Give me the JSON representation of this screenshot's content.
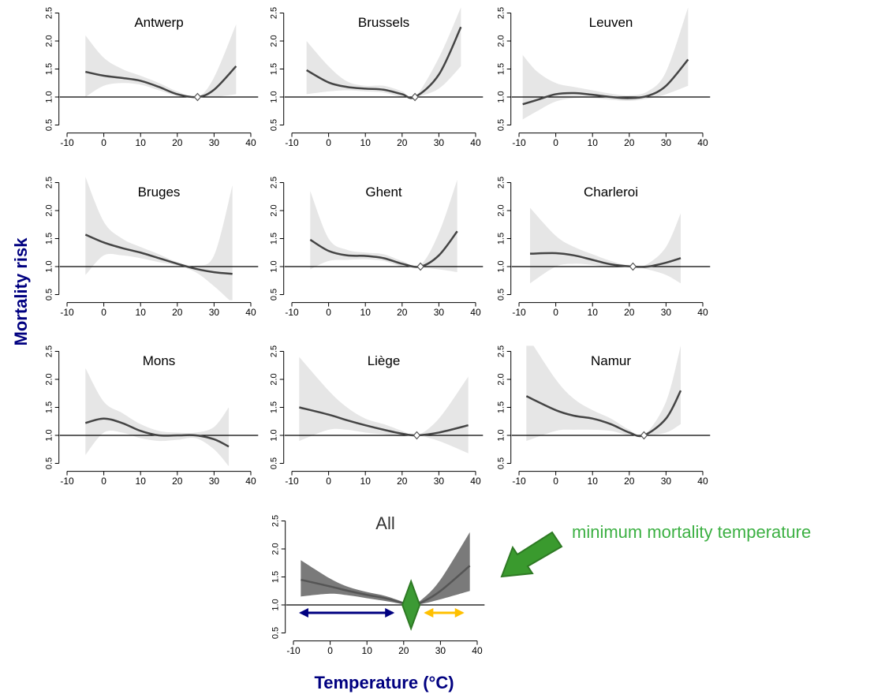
{
  "ylabel": "Mortality risk",
  "xlabel": "Temperature (°C)",
  "annotation": "minimum mortality temperature",
  "chart_data": [
    {
      "type": "line",
      "title": "Antwerp",
      "x": [
        -5,
        0,
        5,
        10,
        15,
        20,
        25.5,
        30,
        36
      ],
      "values": [
        1.45,
        1.38,
        1.34,
        1.29,
        1.18,
        1.05,
        1.0,
        1.13,
        1.55
      ],
      "lower": [
        1.0,
        1.2,
        1.25,
        1.22,
        1.12,
        1.02,
        1.0,
        1.0,
        1.05
      ],
      "upper": [
        2.1,
        1.7,
        1.5,
        1.38,
        1.25,
        1.1,
        1.0,
        1.35,
        2.3
      ],
      "mmt": 25.5,
      "hline": 1,
      "color": "#444444",
      "band_color": "#e6e6e6",
      "xlim": [
        -12,
        42
      ],
      "ylim": [
        0.4,
        2.6
      ],
      "xticks": [
        -10,
        0,
        10,
        20,
        30,
        40
      ],
      "yticks": [
        0.5,
        {
          "value": 1,
          "label": "1.0"
        },
        1.5,
        {
          "value": 2,
          "label": "2.0"
        },
        2.5
      ]
    },
    {
      "type": "line",
      "title": "Brussels",
      "x": [
        -6,
        0,
        5,
        10,
        15,
        20,
        23.5,
        30,
        36
      ],
      "values": [
        1.48,
        1.26,
        1.18,
        1.15,
        1.13,
        1.05,
        1.0,
        1.4,
        2.25
      ],
      "lower": [
        1.05,
        1.1,
        1.12,
        1.1,
        1.08,
        1.0,
        1.0,
        1.15,
        1.55
      ],
      "upper": [
        2.0,
        1.55,
        1.28,
        1.2,
        1.2,
        1.1,
        1.0,
        1.7,
        2.6
      ],
      "mmt": 23.5,
      "hline": 1,
      "color": "#444444",
      "band_color": "#e6e6e6",
      "xlim": [
        -12,
        42
      ],
      "ylim": [
        0.4,
        2.6
      ],
      "xticks": [
        -10,
        0,
        10,
        20,
        30,
        40
      ],
      "yticks": [
        0.5,
        {
          "value": 1,
          "label": "1.0"
        },
        1.5,
        {
          "value": 2,
          "label": "2.0"
        },
        2.5
      ]
    },
    {
      "type": "line",
      "title": "Leuven",
      "x": [
        -9,
        -5,
        0,
        5,
        10,
        15,
        20,
        25,
        30,
        36
      ],
      "values": [
        0.87,
        0.95,
        1.05,
        1.07,
        1.04,
        1.0,
        0.98,
        1.02,
        1.2,
        1.67
      ],
      "lower": [
        0.6,
        0.75,
        0.92,
        0.98,
        0.98,
        0.95,
        0.93,
        0.97,
        1.05,
        1.2
      ],
      "upper": [
        1.75,
        1.45,
        1.25,
        1.18,
        1.12,
        1.06,
        1.03,
        1.1,
        1.45,
        2.6
      ],
      "hline": 1,
      "color": "#444444",
      "band_color": "#e6e6e6",
      "xlim": [
        -12,
        42
      ],
      "ylim": [
        0.4,
        2.6
      ],
      "xticks": [
        -10,
        0,
        10,
        20,
        30,
        40
      ],
      "yticks": [
        0.5,
        {
          "value": 1,
          "label": "1.0"
        },
        1.5,
        {
          "value": 2,
          "label": "2.0"
        },
        2.5
      ]
    },
    {
      "type": "line",
      "title": "Bruges",
      "x": [
        -5,
        0,
        5,
        10,
        15,
        20,
        25,
        30,
        35
      ],
      "values": [
        1.57,
        1.43,
        1.33,
        1.25,
        1.15,
        1.05,
        0.96,
        0.9,
        0.87
      ],
      "lower": [
        0.85,
        1.2,
        1.2,
        1.15,
        1.08,
        1.02,
        0.9,
        0.65,
        0.35
      ],
      "upper": [
        2.6,
        1.8,
        1.5,
        1.35,
        1.22,
        1.08,
        1.02,
        1.2,
        2.45
      ],
      "hline": 1,
      "color": "#444444",
      "band_color": "#e6e6e6",
      "xlim": [
        -12,
        42
      ],
      "ylim": [
        0.4,
        2.6
      ],
      "xticks": [
        -10,
        0,
        10,
        20,
        30,
        40
      ],
      "yticks": [
        0.5,
        {
          "value": 1,
          "label": "1.0"
        },
        1.5,
        {
          "value": 2,
          "label": "2.0"
        },
        2.5
      ]
    },
    {
      "type": "line",
      "title": "Ghent",
      "x": [
        -5,
        0,
        5,
        10,
        15,
        20,
        25,
        30,
        35
      ],
      "values": [
        1.48,
        1.28,
        1.2,
        1.19,
        1.15,
        1.05,
        1.0,
        1.2,
        1.63
      ],
      "lower": [
        0.95,
        1.1,
        1.12,
        1.13,
        1.1,
        1.0,
        0.98,
        0.95,
        0.9
      ],
      "upper": [
        2.35,
        1.5,
        1.3,
        1.25,
        1.22,
        1.1,
        1.03,
        1.6,
        2.55
      ],
      "mmt": 25,
      "hline": 1,
      "color": "#444444",
      "band_color": "#e6e6e6",
      "xlim": [
        -12,
        42
      ],
      "ylim": [
        0.4,
        2.6
      ],
      "xticks": [
        -10,
        0,
        10,
        20,
        30,
        40
      ],
      "yticks": [
        0.5,
        {
          "value": 1,
          "label": "1.0"
        },
        1.5,
        {
          "value": 2,
          "label": "2.0"
        },
        2.5
      ]
    },
    {
      "type": "line",
      "title": "Charleroi",
      "x": [
        -7,
        0,
        5,
        10,
        15,
        21,
        25,
        30,
        34
      ],
      "values": [
        1.23,
        1.24,
        1.2,
        1.12,
        1.04,
        1.0,
        1.0,
        1.07,
        1.15
      ],
      "lower": [
        0.7,
        1.0,
        1.05,
        1.03,
        0.98,
        1.0,
        0.95,
        0.85,
        0.7
      ],
      "upper": [
        2.05,
        1.55,
        1.35,
        1.22,
        1.1,
        1.0,
        1.05,
        1.35,
        1.95
      ],
      "mmt": 21,
      "hline": 1,
      "color": "#444444",
      "band_color": "#e6e6e6",
      "xlim": [
        -12,
        42
      ],
      "ylim": [
        0.4,
        2.6
      ],
      "xticks": [
        -10,
        0,
        10,
        20,
        30,
        40
      ],
      "yticks": [
        0.5,
        {
          "value": 1,
          "label": "1.0"
        },
        1.5,
        {
          "value": 2,
          "label": "2.0"
        },
        2.5
      ]
    },
    {
      "type": "line",
      "title": "Mons",
      "x": [
        -5,
        0,
        5,
        10,
        15,
        20,
        25,
        30,
        34
      ],
      "values": [
        1.22,
        1.3,
        1.22,
        1.08,
        1.0,
        1.0,
        1.0,
        0.93,
        0.8
      ],
      "lower": [
        0.65,
        1.05,
        1.05,
        0.95,
        0.9,
        0.92,
        0.95,
        0.75,
        0.45
      ],
      "upper": [
        2.2,
        1.6,
        1.4,
        1.2,
        1.08,
        1.05,
        1.05,
        1.15,
        1.5
      ],
      "hline": 1,
      "color": "#444444",
      "band_color": "#e6e6e6",
      "xlim": [
        -12,
        42
      ],
      "ylim": [
        0.4,
        2.6
      ],
      "xticks": [
        -10,
        0,
        10,
        20,
        30,
        40
      ],
      "yticks": [
        0.5,
        {
          "value": 1,
          "label": "1.0"
        },
        1.5,
        {
          "value": 2,
          "label": "2.0"
        },
        2.5
      ]
    },
    {
      "type": "line",
      "title": "Liège",
      "x": [
        -8,
        0,
        5,
        10,
        15,
        20,
        24,
        30,
        38
      ],
      "values": [
        1.5,
        1.37,
        1.27,
        1.18,
        1.1,
        1.03,
        1.0,
        1.05,
        1.18
      ],
      "lower": [
        0.9,
        1.1,
        1.1,
        1.05,
        1.02,
        0.98,
        1.0,
        0.9,
        0.68
      ],
      "upper": [
        2.4,
        1.8,
        1.5,
        1.3,
        1.2,
        1.08,
        1.0,
        1.3,
        2.05
      ],
      "mmt": 24,
      "hline": 1,
      "color": "#444444",
      "band_color": "#e6e6e6",
      "xlim": [
        -12,
        42
      ],
      "ylim": [
        0.4,
        2.6
      ],
      "xticks": [
        -10,
        0,
        10,
        20,
        30,
        40
      ],
      "yticks": [
        0.5,
        {
          "value": 1,
          "label": "1.0"
        },
        1.5,
        {
          "value": 2,
          "label": "2.0"
        },
        2.5
      ]
    },
    {
      "type": "line",
      "title": "Namur",
      "x": [
        -8,
        0,
        5,
        10,
        15,
        20,
        24,
        30,
        34
      ],
      "values": [
        1.7,
        1.45,
        1.35,
        1.3,
        1.2,
        1.05,
        1.0,
        1.3,
        1.8
      ],
      "lower": [
        0.9,
        1.08,
        1.1,
        1.1,
        1.08,
        1.0,
        1.0,
        1.05,
        1.2
      ],
      "upper": [
        2.8,
        2.0,
        1.65,
        1.45,
        1.3,
        1.1,
        1.0,
        1.6,
        2.6
      ],
      "mmt": 24,
      "hline": 1,
      "color": "#444444",
      "band_color": "#e6e6e6",
      "xlim": [
        -12,
        42
      ],
      "ylim": [
        0.4,
        2.6
      ],
      "xticks": [
        -10,
        0,
        10,
        20,
        30,
        40
      ],
      "yticks": [
        0.5,
        {
          "value": 1,
          "label": "1.0"
        },
        1.5,
        {
          "value": 2,
          "label": "2.0"
        },
        2.5
      ]
    },
    {
      "type": "line",
      "title": "All",
      "x": [
        -8,
        0,
        5,
        10,
        15,
        20,
        22,
        25,
        30,
        38
      ],
      "values": [
        1.45,
        1.33,
        1.25,
        1.18,
        1.12,
        1.03,
        1.0,
        1.05,
        1.25,
        1.7
      ],
      "lower": [
        1.15,
        1.2,
        1.17,
        1.12,
        1.07,
        1.01,
        1.0,
        1.02,
        1.1,
        1.25
      ],
      "upper": [
        1.8,
        1.47,
        1.32,
        1.23,
        1.16,
        1.05,
        1.0,
        1.1,
        1.45,
        2.3
      ],
      "mmt": 22,
      "mmt_color": "#3c9a34",
      "hline": 1,
      "color": "#555555",
      "band_color": "#7a7a7a",
      "xlim": [
        -12,
        42
      ],
      "ylim": [
        0.4,
        2.6
      ],
      "xticks": [
        -10,
        0,
        10,
        20,
        30,
        40
      ],
      "yticks": [
        0.5,
        {
          "value": 1,
          "label": "1.0"
        },
        1.5,
        {
          "value": 2,
          "label": "2.0"
        },
        2.5
      ],
      "ranges": [
        {
          "color": "#000080",
          "x": [
            -8,
            17
          ]
        },
        {
          "color": "#ffc000",
          "x": [
            26,
            36
          ]
        }
      ]
    }
  ]
}
